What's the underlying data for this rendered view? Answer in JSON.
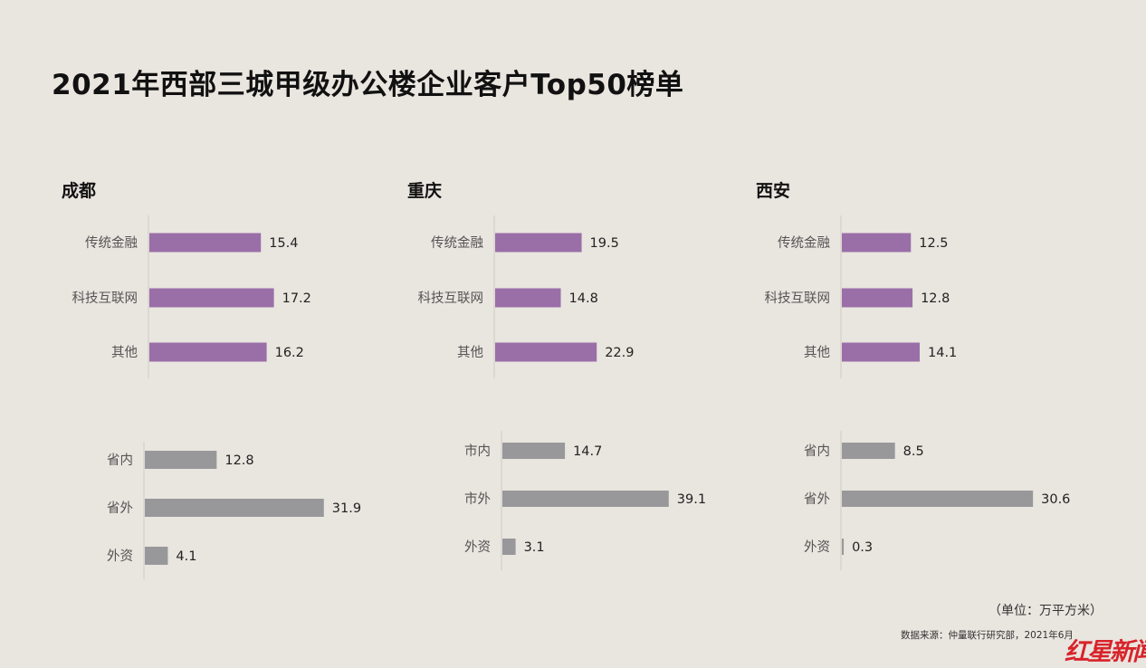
{
  "title": "2021年西部三城甲级办公楼企业客户Top50榜单",
  "unit_note": "（单位：万平方米）",
  "source_note": "数据来源：仲量联行研究部，2021年6月",
  "logo_text": "红星新闻",
  "colors": {
    "industry_bar": "#9a6fa8",
    "origin_bar": "#98989b",
    "background": "#e9e5df",
    "logo": "#d8232a"
  },
  "chart_data": [
    {
      "type": "bar",
      "orientation": "horizontal",
      "title": "成都",
      "groups": [
        {
          "categories": [
            "传统金融",
            "科技互联网",
            "其他"
          ],
          "values": [
            15.4,
            17.2,
            16.2
          ]
        },
        {
          "categories": [
            "省内",
            "省外",
            "外资"
          ],
          "values": [
            12.8,
            31.9,
            4.1
          ]
        }
      ]
    },
    {
      "type": "bar",
      "orientation": "horizontal",
      "title": "重庆",
      "groups": [
        {
          "categories": [
            "传统金融",
            "科技互联网",
            "其他"
          ],
          "values": [
            19.5,
            14.8,
            22.9
          ]
        },
        {
          "categories": [
            "市内",
            "市外",
            "外资"
          ],
          "values": [
            14.7,
            39.1,
            3.1
          ]
        }
      ]
    },
    {
      "type": "bar",
      "orientation": "horizontal",
      "title": "西安",
      "groups": [
        {
          "categories": [
            "传统金融",
            "科技互联网",
            "其他"
          ],
          "values": [
            12.5,
            12.8,
            14.1
          ]
        },
        {
          "categories": [
            "省内",
            "省外",
            "外资"
          ],
          "values": [
            8.5,
            30.6,
            0.3
          ]
        }
      ]
    }
  ]
}
